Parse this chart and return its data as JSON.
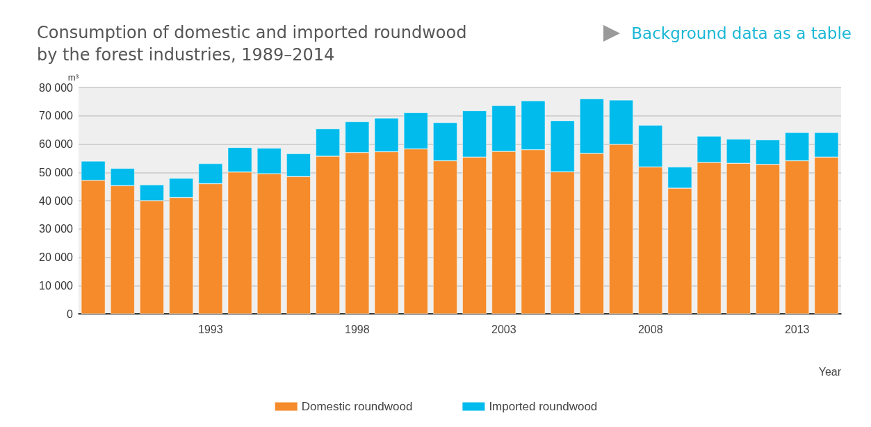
{
  "chart_data": {
    "type": "bar",
    "title": "Consumption of domestic and imported roundwood\nby the forest industries, 1989–2014",
    "xlabel": "Year",
    "ylabel": "m³",
    "annotations": [
      "Background data as a table"
    ],
    "categories": [
      null,
      null,
      null,
      null,
      "1993",
      null,
      null,
      null,
      null,
      "1998",
      null,
      null,
      null,
      null,
      "2003",
      null,
      null,
      null,
      null,
      "2008",
      null,
      null,
      null,
      null,
      "2013",
      null
    ],
    "stacked": true,
    "series": [
      {
        "name": "Domestic roundwood",
        "color": "#f58b2a",
        "values": [
          47200,
          45300,
          40000,
          41100,
          46000,
          50100,
          49500,
          48500,
          55700,
          57000,
          57300,
          58300,
          54100,
          55400,
          57400,
          58000,
          50200,
          56700,
          59900,
          51900,
          44400,
          53500,
          53200,
          52800,
          54100,
          55400
        ]
      },
      {
        "name": "Imported roundwood",
        "color": "#00bbec",
        "values": [
          6800,
          6100,
          5600,
          6800,
          7100,
          8700,
          9100,
          8100,
          9700,
          10900,
          11900,
          12800,
          13500,
          16400,
          16200,
          17300,
          18100,
          19300,
          15700,
          14800,
          7500,
          9300,
          8600,
          8700,
          10000,
          8700
        ]
      }
    ],
    "ylim": [
      0,
      80000
    ],
    "yticks": [
      0,
      {
        "value": 10000,
        "label": "10 000"
      },
      {
        "value": 20000,
        "label": "20 000"
      },
      {
        "value": 30000,
        "label": "30 000"
      },
      {
        "value": 40000,
        "label": "40 000"
      },
      {
        "value": 50000,
        "label": "50 000"
      },
      {
        "value": 60000,
        "label": "60 000"
      },
      {
        "value": 70000,
        "label": "70 000"
      },
      {
        "value": 80000,
        "label": "80 000"
      }
    ],
    "grid": "y",
    "legend": "bottom"
  }
}
